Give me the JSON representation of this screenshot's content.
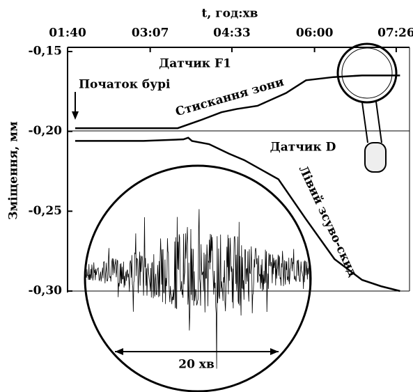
{
  "chart_data": {
    "type": "line",
    "x_label": "t, год:хв",
    "y_label": "Зміщення, мм",
    "xlim": [
      100,
      460
    ],
    "xticks": [
      {
        "value": 100,
        "label": "01:40"
      },
      {
        "value": 187,
        "label": "03:07"
      },
      {
        "value": 273,
        "label": "04:33"
      },
      {
        "value": 360,
        "label": "06:00"
      },
      {
        "value": 446,
        "label": "07:26"
      }
    ],
    "ylim": [
      -0.3,
      -0.15
    ],
    "yticks": [
      {
        "value": -0.15,
        "label": "-0,15"
      },
      {
        "value": -0.2,
        "label": "-0,20"
      },
      {
        "value": -0.25,
        "label": "-0,25"
      },
      {
        "value": -0.3,
        "label": "-0,30"
      }
    ],
    "series": [
      {
        "name": "Датчик F1",
        "color": "#000000",
        "x": [
          108,
          160,
          216,
          240,
          262,
          278,
          300,
          330,
          351,
          380,
          410,
          450
        ],
        "values": [
          -0.198,
          -0.198,
          -0.198,
          -0.193,
          -0.188,
          -0.186,
          -0.184,
          -0.176,
          -0.168,
          -0.166,
          -0.165,
          -0.165
        ]
      },
      {
        "name": "Датчик D",
        "color": "#000000",
        "x": [
          108,
          180,
          222,
          227,
          231,
          249,
          270,
          286,
          322,
          351,
          381,
          410,
          430,
          450
        ],
        "values": [
          -0.206,
          -0.206,
          -0.205,
          -0.204,
          -0.206,
          -0.208,
          -0.214,
          -0.218,
          -0.23,
          -0.255,
          -0.28,
          -0.293,
          -0.297,
          -0.3
        ]
      }
    ],
    "annotations": [
      "Початок бурі",
      "Стискання зони",
      "Лівий зсуво-скид",
      "20 хв"
    ]
  }
}
